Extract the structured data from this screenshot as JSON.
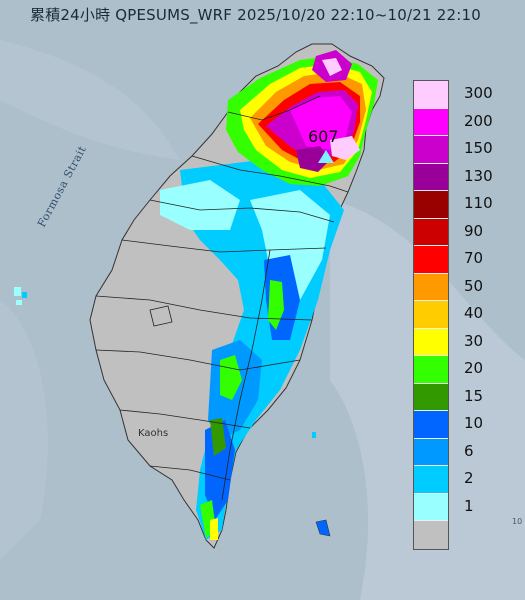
{
  "title": "累積24小時 QPESUMS_WRF 2025/10/20 22:10~10/21 22:10",
  "strait_label": "Formosa Strait",
  "city_label": "Kaohs",
  "peak_value": "607",
  "peak_marker": "triangle-icon",
  "corner_number": "10",
  "legend": {
    "items": [
      {
        "label": "300",
        "color": "#ffccff"
      },
      {
        "label": "200",
        "color": "#ff00ff"
      },
      {
        "label": "150",
        "color": "#cc00cc"
      },
      {
        "label": "130",
        "color": "#990099"
      },
      {
        "label": "110",
        "color": "#990000"
      },
      {
        "label": "90",
        "color": "#cc0000"
      },
      {
        "label": "70",
        "color": "#ff0000"
      },
      {
        "label": "50",
        "color": "#ff9900"
      },
      {
        "label": "40",
        "color": "#ffcc00"
      },
      {
        "label": "30",
        "color": "#ffff00"
      },
      {
        "label": "20",
        "color": "#33ff00"
      },
      {
        "label": "15",
        "color": "#339900"
      },
      {
        "label": "10",
        "color": "#0066ff"
      },
      {
        "label": "6",
        "color": "#0099ff"
      },
      {
        "label": "2",
        "color": "#00ccff"
      },
      {
        "label": "1",
        "color": "#99ffff"
      },
      {
        "label": "",
        "color": "#c0c0c0"
      }
    ]
  },
  "colors": {
    "sea": "#aebfcc",
    "land_gray": "#c0c0c0",
    "county_border": "#222222"
  }
}
